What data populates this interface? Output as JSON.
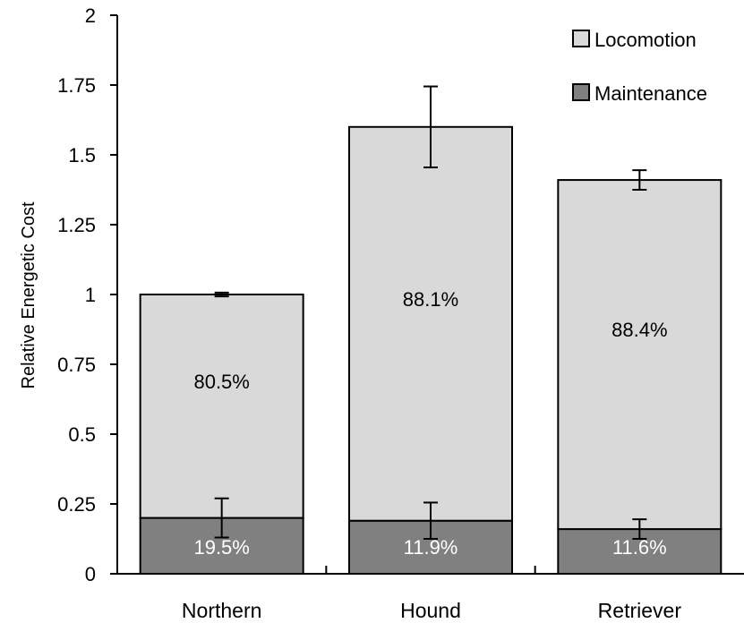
{
  "chart_data": {
    "type": "bar",
    "stacked": true,
    "title": "",
    "xlabel": "",
    "ylabel": "Relative Energetic Cost",
    "ylim": [
      0,
      2
    ],
    "yticks": [
      "0",
      "0.25",
      "0.5",
      "0.75",
      "1",
      "1.25",
      "1.5",
      "1.75",
      "2"
    ],
    "categories": [
      "Northern",
      "Hound",
      "Retriever"
    ],
    "series": [
      {
        "name": "Maintenance",
        "color": "#808080",
        "values": [
          0.2,
          0.19,
          0.16
        ],
        "error": [
          0.07,
          0.065,
          0.035
        ],
        "labels": [
          "19.5%",
          "11.9%",
          "11.6%"
        ],
        "label_color": "#ffffff"
      },
      {
        "name": "Locomotion",
        "color": "#d9d9d9",
        "values": [
          0.8,
          1.41,
          1.25
        ],
        "error": [
          0.007,
          0.145,
          0.035
        ],
        "labels": [
          "80.5%",
          "88.1%",
          "88.4%"
        ],
        "label_color": "#000000"
      }
    ],
    "legend": {
      "position": "top-right",
      "entries": [
        "Locomotion",
        "Maintenance"
      ]
    },
    "grid": false
  }
}
